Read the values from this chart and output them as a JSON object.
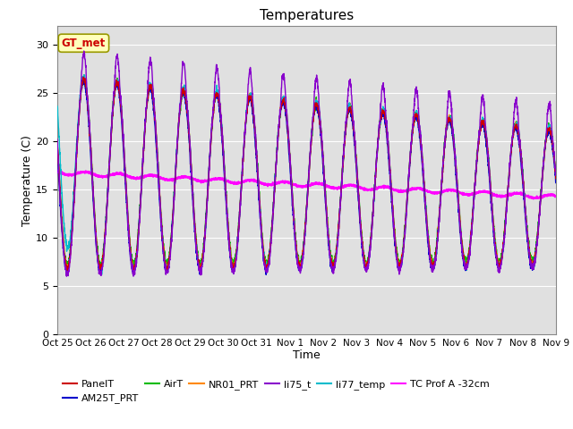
{
  "title": "Temperatures",
  "xlabel": "Time",
  "ylabel": "Temperature (C)",
  "ylim": [
    0,
    32
  ],
  "yticks": [
    0,
    5,
    10,
    15,
    20,
    25,
    30
  ],
  "background_color": "#e0e0e0",
  "series": {
    "PanelT": {
      "color": "#cc0000",
      "lw": 1.0,
      "zorder": 4
    },
    "AM25T_PRT": {
      "color": "#0000cc",
      "lw": 1.0,
      "zorder": 4
    },
    "AirT": {
      "color": "#00bb00",
      "lw": 1.0,
      "zorder": 4
    },
    "NR01_PRT": {
      "color": "#ff8800",
      "lw": 1.0,
      "zorder": 4
    },
    "li75_t": {
      "color": "#8800cc",
      "lw": 1.0,
      "zorder": 5
    },
    "li77_temp": {
      "color": "#00bbcc",
      "lw": 1.0,
      "zorder": 4
    },
    "TC Prof A -32cm": {
      "color": "#ff00ff",
      "lw": 1.5,
      "zorder": 3
    }
  },
  "gt_met_label": "GT_met",
  "gt_met_color": "#cc0000",
  "gt_met_bg": "#ffffbb",
  "gt_met_border": "#999900",
  "x_tick_labels": [
    "Oct 25",
    "Oct 26",
    "Oct 27",
    "Oct 28",
    "Oct 29",
    "Oct 30",
    "Oct 31",
    "Nov 1",
    "Nov 2",
    "Nov 3",
    "Nov 4",
    "Nov 5",
    "Nov 6",
    "Nov 7",
    "Nov 8",
    "Nov 9"
  ],
  "x_tick_positions": [
    0,
    1,
    2,
    3,
    4,
    5,
    6,
    7,
    8,
    9,
    10,
    11,
    12,
    13,
    14,
    15
  ],
  "legend_row1": [
    "PanelT",
    "AM25T_PRT",
    "AirT",
    "NR01_PRT",
    "li75_t",
    "li77_temp"
  ],
  "legend_row2": [
    "TC Prof A -32cm"
  ]
}
